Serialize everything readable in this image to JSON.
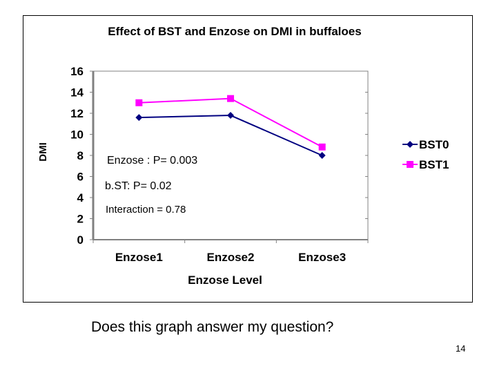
{
  "chart_data": {
    "type": "line",
    "title": "Effect of BST and Enzose on DMI in buffaloes",
    "xlabel": "Enzose Level",
    "ylabel": "DMI",
    "categories": [
      "Enzose1",
      "Enzose2",
      "Enzose3"
    ],
    "series": [
      {
        "name": "BST0",
        "values": [
          11.6,
          11.8,
          8.0
        ],
        "color": "#000080",
        "marker": "diamond"
      },
      {
        "name": "BST1",
        "values": [
          13.0,
          13.4,
          8.8
        ],
        "color": "#ff00ff",
        "marker": "square"
      }
    ],
    "ylim": [
      0,
      16
    ],
    "yticks": [
      0,
      2,
      4,
      6,
      8,
      10,
      12,
      14,
      16
    ],
    "grid": false,
    "legend": "right",
    "annotations": [
      "Enzose : P= 0.003",
      "b.ST: P= 0.02",
      "Interaction = 0.78"
    ]
  },
  "slide": {
    "question": "Does this graph answer my question?",
    "page_number": "14"
  }
}
